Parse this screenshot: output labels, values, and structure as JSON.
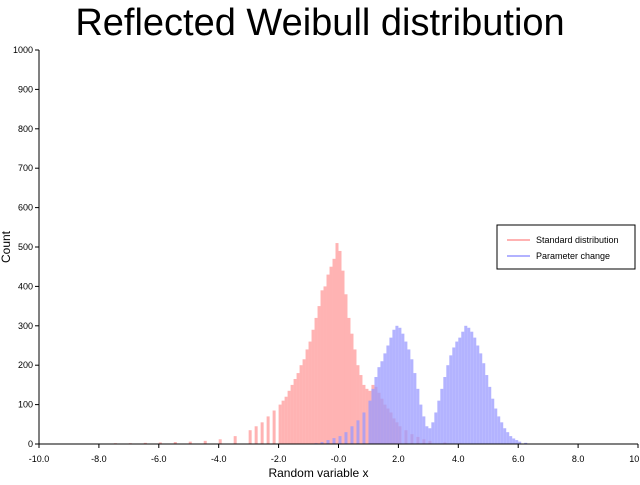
{
  "chart_data": {
    "type": "histogram",
    "title": "Reflected Weibull distribution",
    "xlabel": "Random variable x",
    "ylabel": "Count",
    "xlim": [
      -10,
      10
    ],
    "ylim": [
      0,
      1000
    ],
    "x_ticks": [
      "-10.0",
      "-8.0",
      "-6.0",
      "-4.0",
      "-2.0",
      "-0.0",
      "2.0",
      "4.0",
      "6.0",
      "8.0",
      "10.0"
    ],
    "y_ticks": [
      "0",
      "100",
      "200",
      "300",
      "400",
      "500",
      "600",
      "700",
      "800",
      "900",
      "1000"
    ],
    "legend_position": "right",
    "bin_width": 0.1,
    "series": [
      {
        "name": "Standard distribution",
        "color": "#ff9999",
        "bins": [
          [
            -7.5,
            2
          ],
          [
            -7.0,
            2
          ],
          [
            -6.5,
            3
          ],
          [
            -6.0,
            4
          ],
          [
            -5.5,
            5
          ],
          [
            -5.0,
            6
          ],
          [
            -4.5,
            8
          ],
          [
            -4.0,
            12
          ],
          [
            -3.5,
            20
          ],
          [
            -3.0,
            35
          ],
          [
            -2.8,
            45
          ],
          [
            -2.6,
            55
          ],
          [
            -2.4,
            70
          ],
          [
            -2.2,
            85
          ],
          [
            -2.0,
            100
          ],
          [
            -1.9,
            110
          ],
          [
            -1.8,
            120
          ],
          [
            -1.7,
            135
          ],
          [
            -1.6,
            150
          ],
          [
            -1.5,
            165
          ],
          [
            -1.4,
            180
          ],
          [
            -1.3,
            200
          ],
          [
            -1.2,
            215
          ],
          [
            -1.1,
            240
          ],
          [
            -1.0,
            260
          ],
          [
            -0.9,
            290
          ],
          [
            -0.8,
            320
          ],
          [
            -0.7,
            350
          ],
          [
            -0.6,
            390
          ],
          [
            -0.5,
            400
          ],
          [
            -0.4,
            430
          ],
          [
            -0.3,
            450
          ],
          [
            -0.2,
            470
          ],
          [
            -0.1,
            510
          ],
          [
            0.0,
            490
          ],
          [
            0.1,
            440
          ],
          [
            0.2,
            380
          ],
          [
            0.3,
            320
          ],
          [
            0.4,
            280
          ],
          [
            0.5,
            240
          ],
          [
            0.6,
            200
          ],
          [
            0.7,
            175
          ],
          [
            0.8,
            150
          ],
          [
            0.9,
            140
          ],
          [
            1.0,
            135
          ],
          [
            1.1,
            150
          ],
          [
            1.2,
            145
          ],
          [
            1.3,
            130
          ],
          [
            1.4,
            115
          ],
          [
            1.5,
            100
          ],
          [
            1.6,
            90
          ],
          [
            1.7,
            80
          ],
          [
            1.8,
            65
          ],
          [
            1.9,
            55
          ],
          [
            2.0,
            45
          ],
          [
            2.2,
            35
          ],
          [
            2.4,
            25
          ],
          [
            2.6,
            18
          ],
          [
            2.8,
            12
          ],
          [
            3.0,
            8
          ],
          [
            3.5,
            4
          ],
          [
            4.0,
            2
          ]
        ]
      },
      {
        "name": "Parameter change",
        "color": "#9999ff",
        "bins": [
          [
            -0.8,
            2
          ],
          [
            -0.6,
            5
          ],
          [
            -0.4,
            10
          ],
          [
            -0.2,
            15
          ],
          [
            0.0,
            20
          ],
          [
            0.2,
            30
          ],
          [
            0.4,
            45
          ],
          [
            0.6,
            60
          ],
          [
            0.8,
            80
          ],
          [
            1.0,
            110
          ],
          [
            1.1,
            140
          ],
          [
            1.2,
            170
          ],
          [
            1.3,
            195
          ],
          [
            1.4,
            210
          ],
          [
            1.5,
            230
          ],
          [
            1.6,
            250
          ],
          [
            1.7,
            270
          ],
          [
            1.8,
            290
          ],
          [
            1.9,
            300
          ],
          [
            2.0,
            295
          ],
          [
            2.1,
            280
          ],
          [
            2.2,
            260
          ],
          [
            2.3,
            240
          ],
          [
            2.4,
            215
          ],
          [
            2.5,
            180
          ],
          [
            2.6,
            140
          ],
          [
            2.7,
            100
          ],
          [
            2.8,
            70
          ],
          [
            2.9,
            45
          ],
          [
            3.0,
            40
          ],
          [
            3.1,
            55
          ],
          [
            3.2,
            80
          ],
          [
            3.3,
            110
          ],
          [
            3.4,
            140
          ],
          [
            3.5,
            170
          ],
          [
            3.6,
            200
          ],
          [
            3.7,
            225
          ],
          [
            3.8,
            245
          ],
          [
            3.9,
            260
          ],
          [
            4.0,
            270
          ],
          [
            4.1,
            285
          ],
          [
            4.2,
            300
          ],
          [
            4.3,
            295
          ],
          [
            4.4,
            285
          ],
          [
            4.5,
            270
          ],
          [
            4.6,
            250
          ],
          [
            4.7,
            230
          ],
          [
            4.8,
            205
          ],
          [
            4.9,
            175
          ],
          [
            5.0,
            145
          ],
          [
            5.1,
            115
          ],
          [
            5.2,
            90
          ],
          [
            5.3,
            70
          ],
          [
            5.4,
            55
          ],
          [
            5.5,
            40
          ],
          [
            5.6,
            30
          ],
          [
            5.7,
            20
          ],
          [
            5.8,
            14
          ],
          [
            5.9,
            10
          ],
          [
            6.0,
            6
          ],
          [
            6.2,
            3
          ],
          [
            6.5,
            1
          ]
        ]
      }
    ]
  }
}
